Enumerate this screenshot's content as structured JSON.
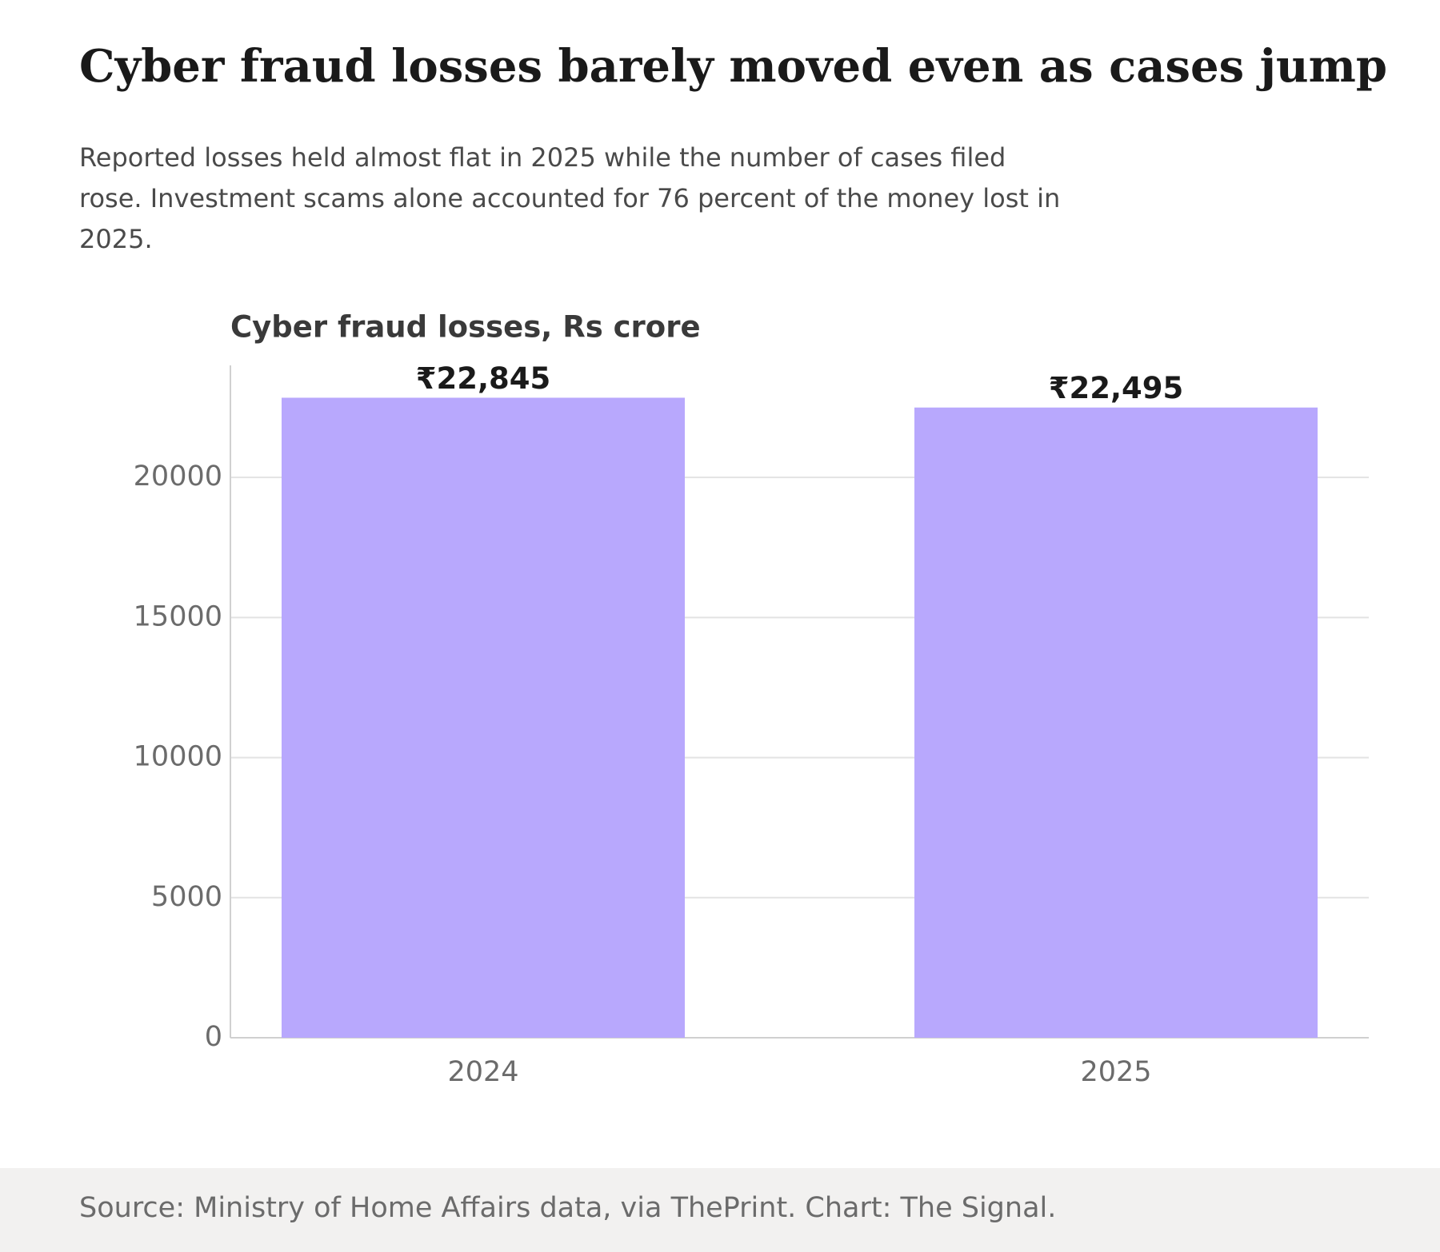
{
  "chart_data": {
    "type": "bar",
    "title": "Cyber fraud losses barely moved even as cases jump",
    "subtitle": "Reported losses held almost flat in 2025 while the number of cases filed rose. Investment scams alone accounted for 76 percent of the money lost in 2025.",
    "y_label": "Cyber fraud losses, Rs crore",
    "source": "Source: Ministry of Home Affairs data, via ThePrint. Chart: The Signal.",
    "categories": [
      "2024",
      "2025"
    ],
    "values": [
      22845,
      22495
    ],
    "value_labels": [
      "₹22,845",
      "₹22,495"
    ],
    "color": "#b8a8fd",
    "ylim": [
      0,
      24000
    ],
    "yticks": [
      0,
      5000,
      10000,
      15000,
      20000
    ],
    "grid": true
  }
}
